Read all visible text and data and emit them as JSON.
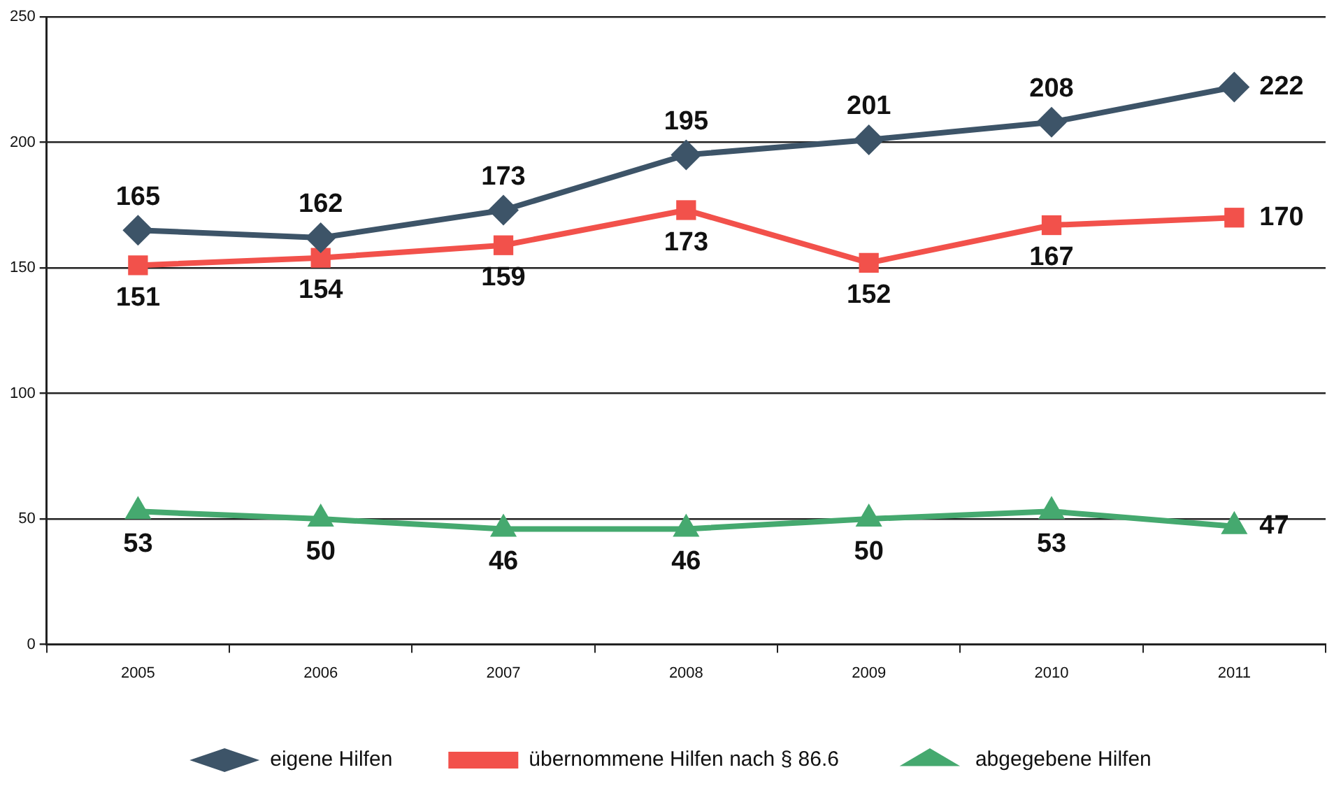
{
  "chart_data": {
    "type": "line",
    "categories": [
      "2005",
      "2006",
      "2007",
      "2008",
      "2009",
      "2010",
      "2011"
    ],
    "series": [
      {
        "name": "eigene Hilfen",
        "color": "#3d5468",
        "marker": "diamond",
        "values": [
          165,
          162,
          173,
          195,
          201,
          208,
          222
        ]
      },
      {
        "name": "übernommene Hilfen nach § 86.6",
        "color": "#f2514b",
        "marker": "square",
        "values": [
          151,
          154,
          159,
          173,
          152,
          167,
          170
        ]
      },
      {
        "name": "abgegebene Hilfen",
        "color": "#45a96f",
        "marker": "triangle",
        "values": [
          53,
          50,
          46,
          46,
          50,
          53,
          47
        ]
      }
    ],
    "ylim": [
      0,
      250
    ],
    "yticks": [
      0,
      50,
      100,
      150,
      200,
      250
    ],
    "grid": "y",
    "legend": "bottom",
    "data_labels": true
  }
}
